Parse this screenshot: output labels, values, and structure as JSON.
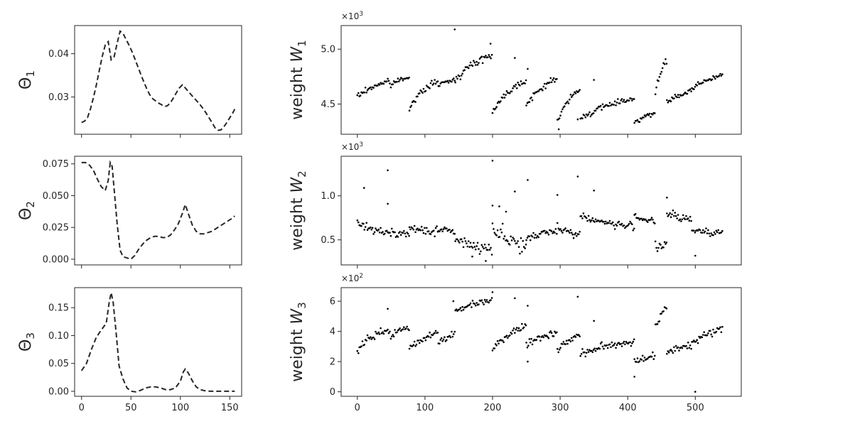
{
  "chart_data": [
    {
      "type": "line",
      "id": "theta1",
      "ylabel_symbol": "Θ",
      "ylabel_sub": "1",
      "xlim": [
        -7,
        162
      ],
      "ylim": [
        0.0214,
        0.0465
      ],
      "xticks": [
        0,
        50,
        100,
        150
      ],
      "show_xtick_labels": false,
      "yticks": [
        0.03,
        0.04
      ],
      "ytick_labels": [
        "0.03",
        "0.04"
      ],
      "line_style": "dashed",
      "x": [
        0,
        3,
        6,
        9,
        12,
        15,
        18,
        21,
        24,
        27,
        30,
        33,
        36,
        39,
        42,
        45,
        48,
        51,
        54,
        57,
        60,
        63,
        66,
        69,
        72,
        75,
        78,
        81,
        84,
        87,
        90,
        93,
        96,
        99,
        102,
        105,
        108,
        111,
        114,
        117,
        120,
        123,
        126,
        129,
        132,
        135,
        138,
        141,
        144,
        147,
        150,
        153,
        155
      ],
      "y": [
        0.0241,
        0.0244,
        0.0252,
        0.0272,
        0.0298,
        0.0328,
        0.0362,
        0.0394,
        0.042,
        0.0428,
        0.0386,
        0.0393,
        0.0424,
        0.0452,
        0.0447,
        0.0433,
        0.042,
        0.0405,
        0.0388,
        0.037,
        0.0352,
        0.0335,
        0.0319,
        0.0305,
        0.0296,
        0.0291,
        0.0286,
        0.0282,
        0.0278,
        0.028,
        0.0287,
        0.0298,
        0.031,
        0.0321,
        0.0328,
        0.0321,
        0.0313,
        0.0305,
        0.0297,
        0.029,
        0.0282,
        0.0273,
        0.0263,
        0.0252,
        0.0241,
        0.0229,
        0.0223,
        0.0224,
        0.0231,
        0.0241,
        0.0252,
        0.0263,
        0.0272
      ]
    },
    {
      "type": "line",
      "id": "theta2",
      "ylabel_symbol": "Θ",
      "ylabel_sub": "2",
      "xlim": [
        -7,
        162
      ],
      "ylim": [
        -0.0045,
        0.081
      ],
      "xticks": [
        0,
        50,
        100,
        150
      ],
      "show_xtick_labels": false,
      "yticks": [
        0.0,
        0.025,
        0.05,
        0.075
      ],
      "ytick_labels": [
        "0.000",
        "0.025",
        "0.050",
        "0.075"
      ],
      "line_style": "dashed",
      "x": [
        0,
        4,
        8,
        12,
        16,
        20,
        24,
        27,
        29,
        31,
        33,
        36,
        39,
        42,
        46,
        50,
        54,
        58,
        62,
        66,
        70,
        74,
        78,
        82,
        86,
        90,
        94,
        98,
        102,
        105,
        108,
        112,
        116,
        120,
        124,
        128,
        132,
        136,
        140,
        144,
        148,
        152,
        155
      ],
      "y": [
        0.076,
        0.076,
        0.074,
        0.07,
        0.063,
        0.057,
        0.054,
        0.062,
        0.076,
        0.073,
        0.055,
        0.028,
        0.007,
        0.002,
        0.001,
        0.0,
        0.003,
        0.008,
        0.012,
        0.015,
        0.017,
        0.018,
        0.018,
        0.017,
        0.017,
        0.019,
        0.023,
        0.028,
        0.036,
        0.043,
        0.036,
        0.027,
        0.022,
        0.02,
        0.02,
        0.021,
        0.022,
        0.024,
        0.026,
        0.028,
        0.03,
        0.032,
        0.034
      ]
    },
    {
      "type": "line",
      "id": "theta3",
      "ylabel_symbol": "Θ",
      "ylabel_sub": "3",
      "xlim": [
        -7,
        162
      ],
      "ylim": [
        -0.009,
        0.186
      ],
      "xticks": [
        0,
        50,
        100,
        150
      ],
      "xtick_labels": [
        "0",
        "50",
        "100",
        "150"
      ],
      "show_xtick_labels": true,
      "yticks": [
        0.0,
        0.05,
        0.1,
        0.15
      ],
      "ytick_labels": [
        "0.00",
        "0.05",
        "0.10",
        "0.15"
      ],
      "line_style": "dashed",
      "x": [
        0,
        5,
        10,
        15,
        20,
        25,
        28,
        30,
        32,
        35,
        38,
        42,
        46,
        50,
        55,
        60,
        65,
        70,
        75,
        80,
        85,
        90,
        95,
        100,
        103,
        105,
        108,
        112,
        116,
        120,
        125,
        130,
        135,
        140,
        145,
        150,
        155
      ],
      "y": [
        0.037,
        0.05,
        0.075,
        0.097,
        0.11,
        0.122,
        0.16,
        0.177,
        0.16,
        0.105,
        0.045,
        0.022,
        0.006,
        0.0,
        -0.001,
        0.002,
        0.006,
        0.008,
        0.008,
        0.006,
        0.003,
        0.003,
        0.006,
        0.018,
        0.035,
        0.04,
        0.033,
        0.019,
        0.008,
        0.003,
        0.001,
        0.0,
        0.0,
        0.0,
        0.0,
        0.0,
        0.0
      ]
    },
    {
      "type": "scatter",
      "id": "weight1",
      "ylabel_prefix": "weight",
      "ylabel_symbol": "W",
      "ylabel_sub": "1",
      "multiplier": "×10",
      "multiplier_exp": "3",
      "xlim": [
        -24,
        568
      ],
      "ylim": [
        4.225,
        5.215
      ],
      "xticks": [
        0,
        100,
        200,
        300,
        400,
        500
      ],
      "show_xtick_labels": false,
      "yticks": [
        4.5,
        5.0
      ],
      "ytick_labels": [
        "4.5",
        "5.0"
      ],
      "segments": [
        {
          "x0": 0,
          "x1": 48,
          "y0": 4.57,
          "y1": 4.705,
          "noise": 0.014
        },
        {
          "x0": 48,
          "x1": 77,
          "y0": 4.67,
          "y1": 4.745,
          "noise": 0.012
        },
        {
          "x0": 77,
          "x1": 120,
          "y0": 4.47,
          "y1": 4.705,
          "noise": 0.013
        },
        {
          "x0": 120,
          "x1": 145,
          "y0": 4.67,
          "y1": 4.72,
          "noise": 0.009
        },
        {
          "x0": 145,
          "x1": 200,
          "y0": 4.73,
          "y1": 4.94,
          "noise": 0.016
        },
        {
          "x0": 200,
          "x1": 250,
          "y0": 4.44,
          "y1": 4.71,
          "noise": 0.015
        },
        {
          "x0": 250,
          "x1": 296,
          "y0": 4.49,
          "y1": 4.725,
          "noise": 0.013
        },
        {
          "x0": 296,
          "x1": 330,
          "y0": 4.36,
          "y1": 4.62,
          "noise": 0.016
        },
        {
          "x0": 330,
          "x1": 410,
          "y0": 4.37,
          "y1": 4.545,
          "noise": 0.013
        },
        {
          "x0": 410,
          "x1": 441,
          "y0": 4.34,
          "y1": 4.41,
          "noise": 0.012
        },
        {
          "x0": 441,
          "x1": 458,
          "y0": 4.6,
          "y1": 4.89,
          "noise": 0.014
        },
        {
          "x0": 458,
          "x1": 495,
          "y0": 4.52,
          "y1": 4.605,
          "noise": 0.012
        },
        {
          "x0": 495,
          "x1": 541,
          "y0": 4.64,
          "y1": 4.76,
          "noise": 0.014
        }
      ],
      "outliers": [
        [
          144,
          5.18
        ],
        [
          197,
          5.05
        ],
        [
          233,
          4.92
        ],
        [
          252,
          4.82
        ],
        [
          350,
          4.72
        ],
        [
          298,
          4.27
        ],
        [
          326,
          4.36
        ]
      ]
    },
    {
      "type": "scatter",
      "id": "weight2",
      "ylabel_prefix": "weight",
      "ylabel_symbol": "W",
      "ylabel_sub": "2",
      "multiplier": "×10",
      "multiplier_exp": "3",
      "xlim": [
        -24,
        568
      ],
      "ylim": [
        0.215,
        1.45
      ],
      "xticks": [
        0,
        100,
        200,
        300,
        400,
        500
      ],
      "show_xtick_labels": false,
      "yticks": [
        0.5,
        1.0
      ],
      "ytick_labels": [
        "0.5",
        "1.0"
      ],
      "segments": [
        {
          "x0": 0,
          "x1": 48,
          "y0": 0.69,
          "y1": 0.575,
          "noise": 0.02
        },
        {
          "x0": 48,
          "x1": 77,
          "y0": 0.6,
          "y1": 0.57,
          "noise": 0.025
        },
        {
          "x0": 77,
          "x1": 120,
          "y0": 0.62,
          "y1": 0.6,
          "noise": 0.025
        },
        {
          "x0": 120,
          "x1": 145,
          "y0": 0.61,
          "y1": 0.6,
          "noise": 0.02
        },
        {
          "x0": 145,
          "x1": 200,
          "y0": 0.5,
          "y1": 0.4,
          "noise": 0.03
        },
        {
          "x0": 200,
          "x1": 250,
          "y0": 0.65,
          "y1": 0.44,
          "noise": 0.055
        },
        {
          "x0": 250,
          "x1": 296,
          "y0": 0.5,
          "y1": 0.6,
          "noise": 0.02
        },
        {
          "x0": 296,
          "x1": 330,
          "y0": 0.66,
          "y1": 0.56,
          "noise": 0.025
        },
        {
          "x0": 330,
          "x1": 410,
          "y0": 0.77,
          "y1": 0.655,
          "noise": 0.02
        },
        {
          "x0": 410,
          "x1": 441,
          "y0": 0.78,
          "y1": 0.71,
          "noise": 0.02
        },
        {
          "x0": 441,
          "x1": 458,
          "y0": 0.42,
          "y1": 0.42,
          "noise": 0.03
        },
        {
          "x0": 458,
          "x1": 495,
          "y0": 0.8,
          "y1": 0.73,
          "noise": 0.025
        },
        {
          "x0": 495,
          "x1": 541,
          "y0": 0.62,
          "y1": 0.58,
          "noise": 0.02
        }
      ],
      "outliers": [
        [
          10,
          1.09
        ],
        [
          45,
          1.29
        ],
        [
          45,
          0.91
        ],
        [
          200,
          1.4
        ],
        [
          200,
          0.89
        ],
        [
          233,
          1.05
        ],
        [
          252,
          1.18
        ],
        [
          296,
          1.01
        ],
        [
          326,
          1.22
        ],
        [
          350,
          1.06
        ],
        [
          458,
          0.98
        ],
        [
          500,
          0.32
        ],
        [
          190,
          0.26
        ],
        [
          170,
          0.31
        ],
        [
          210,
          0.88
        ],
        [
          220,
          0.82
        ]
      ]
    },
    {
      "type": "scatter",
      "id": "weight3",
      "ylabel_prefix": "weight",
      "ylabel_symbol": "W",
      "ylabel_sub": "3",
      "multiplier": "×10",
      "multiplier_exp": "2",
      "xlim": [
        -24,
        568
      ],
      "ylim": [
        -0.3,
        6.9
      ],
      "xticks": [
        0,
        100,
        200,
        300,
        400,
        500
      ],
      "xtick_labels": [
        "0",
        "100",
        "200",
        "300",
        "400",
        "500"
      ],
      "show_xtick_labels": true,
      "yticks": [
        0,
        2,
        4,
        6
      ],
      "ytick_labels": [
        "0",
        "2",
        "4",
        "6"
      ],
      "segments": [
        {
          "x0": 0,
          "x1": 48,
          "y0": 2.8,
          "y1": 4.1,
          "noise": 0.13
        },
        {
          "x0": 48,
          "x1": 77,
          "y0": 3.7,
          "y1": 4.2,
          "noise": 0.12
        },
        {
          "x0": 77,
          "x1": 120,
          "y0": 2.9,
          "y1": 3.9,
          "noise": 0.13
        },
        {
          "x0": 120,
          "x1": 145,
          "y0": 3.3,
          "y1": 3.8,
          "noise": 0.12
        },
        {
          "x0": 145,
          "x1": 200,
          "y0": 5.3,
          "y1": 6.1,
          "noise": 0.11
        },
        {
          "x0": 200,
          "x1": 250,
          "y0": 2.8,
          "y1": 4.4,
          "noise": 0.14
        },
        {
          "x0": 250,
          "x1": 296,
          "y0": 3.1,
          "y1": 3.9,
          "noise": 0.12
        },
        {
          "x0": 296,
          "x1": 330,
          "y0": 2.8,
          "y1": 3.7,
          "noise": 0.13
        },
        {
          "x0": 330,
          "x1": 410,
          "y0": 2.5,
          "y1": 3.3,
          "noise": 0.13
        },
        {
          "x0": 410,
          "x1": 441,
          "y0": 2.0,
          "y1": 2.4,
          "noise": 0.14
        },
        {
          "x0": 441,
          "x1": 458,
          "y0": 4.2,
          "y1": 5.5,
          "noise": 0.12
        },
        {
          "x0": 458,
          "x1": 495,
          "y0": 2.6,
          "y1": 3.1,
          "noise": 0.13
        },
        {
          "x0": 495,
          "x1": 541,
          "y0": 3.2,
          "y1": 4.1,
          "noise": 0.13
        }
      ],
      "outliers": [
        [
          45,
          5.5
        ],
        [
          200,
          6.6
        ],
        [
          233,
          6.2
        ],
        [
          252,
          5.7
        ],
        [
          252,
          2.0
        ],
        [
          326,
          6.3
        ],
        [
          350,
          4.7
        ],
        [
          410,
          1.0
        ],
        [
          500,
          0.0
        ],
        [
          142,
          6.0
        ]
      ]
    }
  ]
}
